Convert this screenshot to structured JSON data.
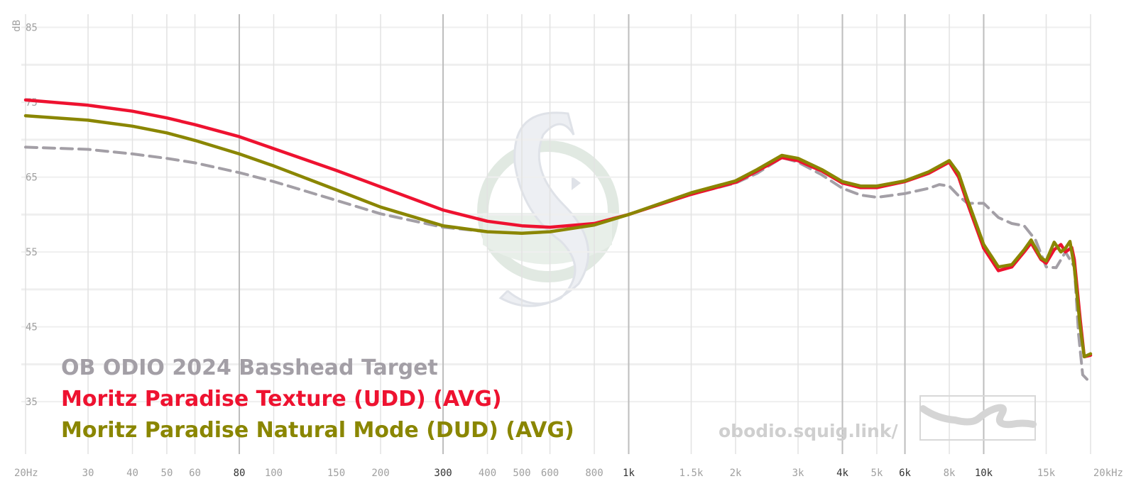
{
  "chart_data": {
    "type": "line",
    "ylabel": "dB",
    "xscale": "log",
    "xlim": [
      20,
      20000
    ],
    "ylim": [
      28,
      86
    ],
    "grid": true,
    "y_ticks": [
      {
        "value": 85,
        "label": "85"
      },
      {
        "value": 75,
        "label": "75"
      },
      {
        "value": 65,
        "label": "65"
      },
      {
        "value": 55,
        "label": "55"
      },
      {
        "value": 45,
        "label": "45"
      },
      {
        "value": 35,
        "label": "35"
      }
    ],
    "x_ticks": [
      {
        "value": 20,
        "label": "20Hz",
        "major": false
      },
      {
        "value": 30,
        "label": "30",
        "major": false
      },
      {
        "value": 40,
        "label": "40",
        "major": false
      },
      {
        "value": 50,
        "label": "50",
        "major": false
      },
      {
        "value": 60,
        "label": "60",
        "major": false
      },
      {
        "value": 80,
        "label": "80",
        "major": true
      },
      {
        "value": 100,
        "label": "100",
        "major": false
      },
      {
        "value": 150,
        "label": "150",
        "major": false
      },
      {
        "value": 200,
        "label": "200",
        "major": false
      },
      {
        "value": 300,
        "label": "300",
        "major": true
      },
      {
        "value": 400,
        "label": "400",
        "major": false
      },
      {
        "value": 500,
        "label": "500",
        "major": false
      },
      {
        "value": 600,
        "label": "600",
        "major": false
      },
      {
        "value": 800,
        "label": "800",
        "major": false
      },
      {
        "value": 1000,
        "label": "1k",
        "major": true
      },
      {
        "value": 1500,
        "label": "1.5k",
        "major": false
      },
      {
        "value": 2000,
        "label": "2k",
        "major": false
      },
      {
        "value": 3000,
        "label": "3k",
        "major": false
      },
      {
        "value": 4000,
        "label": "4k",
        "major": true
      },
      {
        "value": 5000,
        "label": "5k",
        "major": false
      },
      {
        "value": 6000,
        "label": "6k",
        "major": true
      },
      {
        "value": 8000,
        "label": "8k",
        "major": false
      },
      {
        "value": 10000,
        "label": "10k",
        "major": true
      },
      {
        "value": 15000,
        "label": "15k",
        "major": false
      },
      {
        "value": 20000,
        "label": "20kHz",
        "major": false
      }
    ],
    "series": [
      {
        "name": "OB ODIO 2024 Basshead Target",
        "color": "#a39fa6",
        "dashed": true,
        "points": [
          [
            20,
            69
          ],
          [
            30,
            68.7
          ],
          [
            40,
            68.1
          ],
          [
            50,
            67.5
          ],
          [
            60,
            66.9
          ],
          [
            80,
            65.6
          ],
          [
            100,
            64.4
          ],
          [
            150,
            61.9
          ],
          [
            200,
            60.1
          ],
          [
            300,
            58.3
          ],
          [
            400,
            57.7
          ],
          [
            500,
            57.5
          ],
          [
            600,
            57.7
          ],
          [
            800,
            58.6
          ],
          [
            1000,
            60
          ],
          [
            1500,
            62.7
          ],
          [
            2000,
            64.2
          ],
          [
            2300,
            65.5
          ],
          [
            2700,
            67.6
          ],
          [
            3000,
            67
          ],
          [
            3500,
            65.3
          ],
          [
            4000,
            63.5
          ],
          [
            4500,
            62.6
          ],
          [
            5000,
            62.3
          ],
          [
            6000,
            62.8
          ],
          [
            7000,
            63.5
          ],
          [
            7500,
            64
          ],
          [
            8000,
            63.8
          ],
          [
            8500,
            62.5
          ],
          [
            9000,
            61.5
          ],
          [
            10000,
            61.5
          ],
          [
            11000,
            59.6
          ],
          [
            12000,
            58.8
          ],
          [
            13000,
            58.5
          ],
          [
            14000,
            56.6
          ],
          [
            15000,
            53
          ],
          [
            16000,
            52.9
          ],
          [
            17000,
            55
          ],
          [
            18000,
            53
          ],
          [
            18500,
            44
          ],
          [
            19000,
            38.6
          ],
          [
            20000,
            37.5
          ]
        ]
      },
      {
        "name": "Moritz Paradise Texture (UDD) (AVG)",
        "color": "#ee1230",
        "dashed": false,
        "points": [
          [
            20,
            75.3
          ],
          [
            30,
            74.6
          ],
          [
            40,
            73.8
          ],
          [
            50,
            72.9
          ],
          [
            60,
            72
          ],
          [
            80,
            70.4
          ],
          [
            100,
            68.8
          ],
          [
            150,
            65.9
          ],
          [
            200,
            63.7
          ],
          [
            300,
            60.6
          ],
          [
            400,
            59.1
          ],
          [
            500,
            58.5
          ],
          [
            600,
            58.3
          ],
          [
            800,
            58.8
          ],
          [
            1000,
            60
          ],
          [
            1500,
            62.7
          ],
          [
            2000,
            64.3
          ],
          [
            2300,
            65.8
          ],
          [
            2700,
            67.6
          ],
          [
            3000,
            67.2
          ],
          [
            3500,
            65.8
          ],
          [
            4000,
            64.2
          ],
          [
            4500,
            63.6
          ],
          [
            5000,
            63.6
          ],
          [
            6000,
            64.4
          ],
          [
            7000,
            65.5
          ],
          [
            8000,
            67
          ],
          [
            8500,
            65
          ],
          [
            9000,
            61.5
          ],
          [
            10000,
            55.5
          ],
          [
            11000,
            52.5
          ],
          [
            12000,
            53
          ],
          [
            13000,
            55
          ],
          [
            13600,
            56.2
          ],
          [
            14500,
            54
          ],
          [
            15000,
            53.5
          ],
          [
            15800,
            55.3
          ],
          [
            16500,
            56
          ],
          [
            17000,
            55
          ],
          [
            17700,
            55.6
          ],
          [
            18000,
            54
          ],
          [
            18700,
            46
          ],
          [
            19200,
            41
          ],
          [
            20000,
            41.2
          ]
        ]
      },
      {
        "name": "Moritz Paradise Natural Mode (DUD) (AVG)",
        "color": "#8a8600",
        "dashed": false,
        "points": [
          [
            20,
            73.2
          ],
          [
            30,
            72.6
          ],
          [
            40,
            71.8
          ],
          [
            50,
            70.9
          ],
          [
            60,
            69.9
          ],
          [
            80,
            68.1
          ],
          [
            100,
            66.5
          ],
          [
            150,
            63.3
          ],
          [
            200,
            61
          ],
          [
            300,
            58.5
          ],
          [
            400,
            57.7
          ],
          [
            500,
            57.5
          ],
          [
            600,
            57.7
          ],
          [
            800,
            58.6
          ],
          [
            1000,
            60
          ],
          [
            1500,
            62.9
          ],
          [
            2000,
            64.5
          ],
          [
            2300,
            66
          ],
          [
            2700,
            67.9
          ],
          [
            3000,
            67.5
          ],
          [
            3500,
            66
          ],
          [
            4000,
            64.4
          ],
          [
            4500,
            63.8
          ],
          [
            5000,
            63.8
          ],
          [
            6000,
            64.5
          ],
          [
            7000,
            65.7
          ],
          [
            8000,
            67.2
          ],
          [
            8500,
            65.5
          ],
          [
            9000,
            62
          ],
          [
            10000,
            56
          ],
          [
            11000,
            53
          ],
          [
            12000,
            53.3
          ],
          [
            13000,
            55.3
          ],
          [
            13600,
            56.6
          ],
          [
            14500,
            54.2
          ],
          [
            15000,
            53.8
          ],
          [
            15800,
            56.3
          ],
          [
            16500,
            55
          ],
          [
            17000,
            55.5
          ],
          [
            17500,
            56.4
          ],
          [
            18000,
            53
          ],
          [
            18700,
            45
          ],
          [
            19200,
            41
          ],
          [
            20000,
            41.4
          ]
        ]
      }
    ]
  },
  "watermark": {
    "url_text": "obodio.squig.link/"
  }
}
